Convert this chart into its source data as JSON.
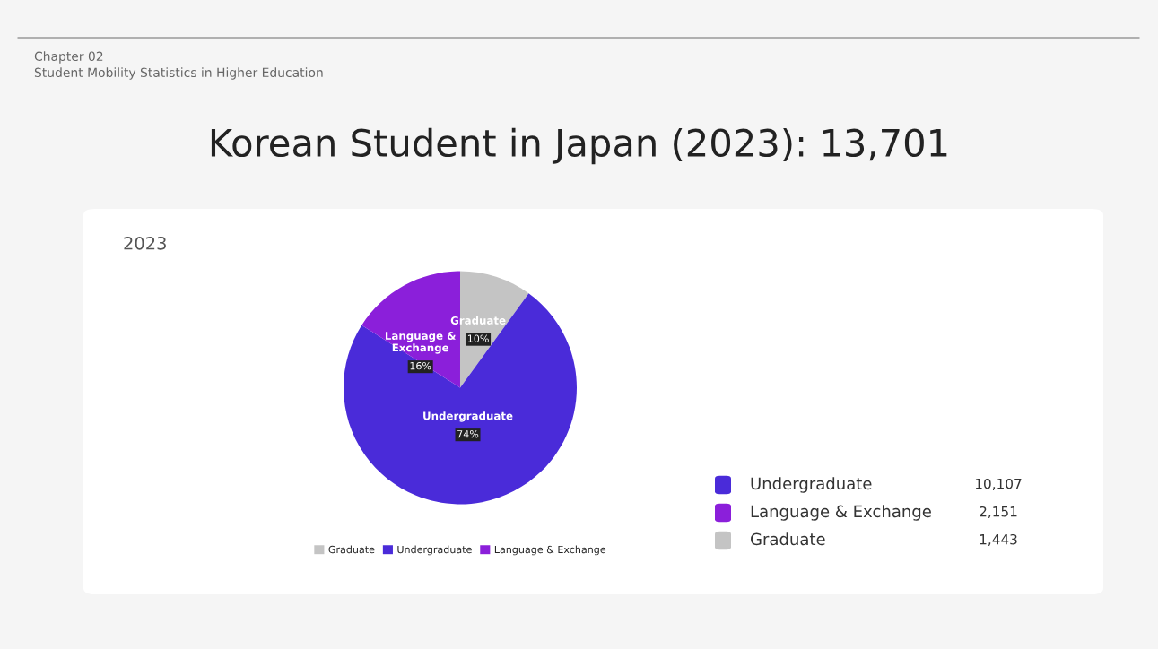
{
  "chart_data": {
    "type": "pie",
    "title": "Korean Student in Japan (2023): 13,701",
    "subtitle": "2023",
    "annotations": [
      "Chapter 02",
      "Student Mobility Statistics in Higher Education",
      "10,107",
      "2,151",
      "1,443"
    ],
    "categories": [
      "Graduate",
      "Undergraduate",
      "Language & Exchange"
    ],
    "values": [
      10,
      74,
      16
    ],
    "colors": [
      "#c4c4c4",
      "#4a2bd9",
      "#8b1fda"
    ],
    "value_labels": [
      "10%",
      "74%",
      "16%"
    ],
    "legend": "bottom"
  }
}
